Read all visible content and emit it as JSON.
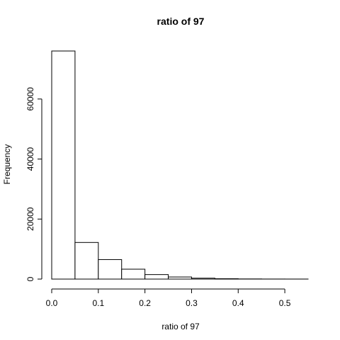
{
  "chart_data": {
    "type": "bar",
    "title": "ratio of 97",
    "xlabel": "ratio of 97",
    "ylabel": "Frequency",
    "bins": [
      {
        "x0": 0.0,
        "x1": 0.05,
        "count": 76000
      },
      {
        "x0": 0.05,
        "x1": 0.1,
        "count": 12200
      },
      {
        "x0": 0.1,
        "x1": 0.15,
        "count": 6500
      },
      {
        "x0": 0.15,
        "x1": 0.2,
        "count": 3300
      },
      {
        "x0": 0.2,
        "x1": 0.25,
        "count": 1500
      },
      {
        "x0": 0.25,
        "x1": 0.3,
        "count": 700
      },
      {
        "x0": 0.3,
        "x1": 0.35,
        "count": 300
      },
      {
        "x0": 0.35,
        "x1": 0.4,
        "count": 120
      },
      {
        "x0": 0.4,
        "x1": 0.45,
        "count": 50
      },
      {
        "x0": 0.45,
        "x1": 0.5,
        "count": 20
      },
      {
        "x0": 0.5,
        "x1": 0.55,
        "count": 10
      }
    ],
    "xlim": [
      0.0,
      0.55
    ],
    "ylim": [
      0,
      76000
    ],
    "x_ticks": [
      0.0,
      0.1,
      0.2,
      0.3,
      0.4,
      0.5
    ],
    "x_tick_labels": [
      "0.0",
      "0.1",
      "0.2",
      "0.3",
      "0.4",
      "0.5"
    ],
    "y_ticks": [
      0,
      20000,
      40000,
      60000
    ],
    "y_tick_labels": [
      "0",
      "20000",
      "40000",
      "60000"
    ],
    "grid": false,
    "legend": "none"
  },
  "colors": {
    "bar_fill": "#ffffff",
    "bar_stroke": "#000000",
    "background": "#ffffff"
  }
}
